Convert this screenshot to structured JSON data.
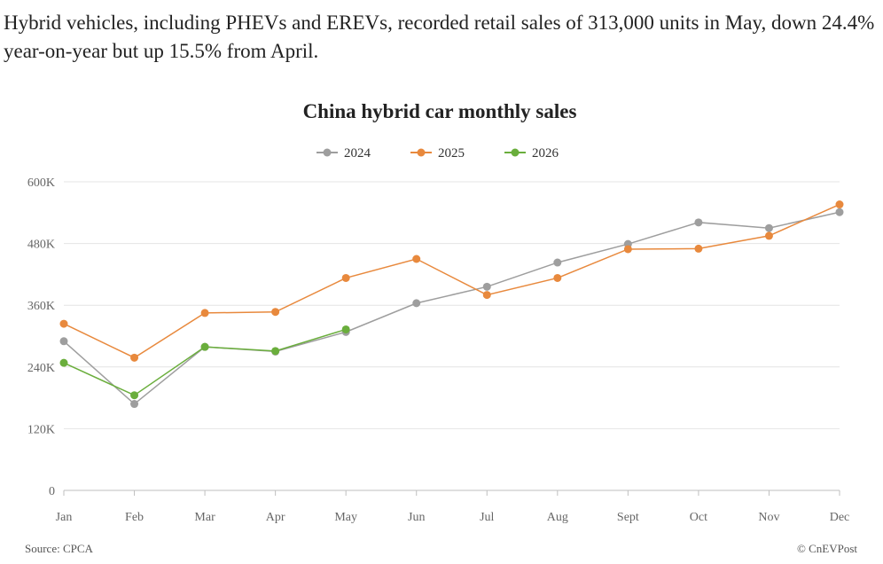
{
  "intro_text": "Hybrid vehicles, including PHEVs and EREVs, recorded retail sales of 313,000 units in May, down 24.4% year-on-year but up 15.5% from April.",
  "chart_data": {
    "type": "line",
    "title": "China hybrid car monthly sales",
    "categories": [
      "Jan",
      "Feb",
      "Mar",
      "Apr",
      "May",
      "Jun",
      "Jul",
      "Aug",
      "Sept",
      "Oct",
      "Nov",
      "Dec"
    ],
    "ylim": [
      0,
      600000
    ],
    "yticks": [
      {
        "value": 0,
        "label": "0"
      },
      {
        "value": 120000,
        "label": "120K"
      },
      {
        "value": 240000,
        "label": "240K"
      },
      {
        "value": 360000,
        "label": "360K"
      },
      {
        "value": 480000,
        "label": "480K"
      },
      {
        "value": 600000,
        "label": "600K"
      }
    ],
    "grid": true,
    "legend_position": "top-center",
    "series": [
      {
        "name": "2024",
        "color": "#9e9e9e",
        "values": [
          290000,
          168000,
          279000,
          270000,
          308000,
          364000,
          396000,
          443000,
          479000,
          521000,
          510000,
          541000
        ]
      },
      {
        "name": "2025",
        "color": "#e8893d",
        "values": [
          324000,
          258000,
          345000,
          347000,
          413000,
          450000,
          380000,
          413000,
          469000,
          470000,
          495000,
          556000
        ]
      },
      {
        "name": "2026",
        "color": "#6aae3c",
        "values": [
          248000,
          185000,
          279000,
          271000,
          313000,
          null,
          null,
          null,
          null,
          null,
          null,
          null
        ]
      }
    ]
  },
  "footer": {
    "source": "Source: CPCA",
    "credit": "© CnEVPost"
  }
}
